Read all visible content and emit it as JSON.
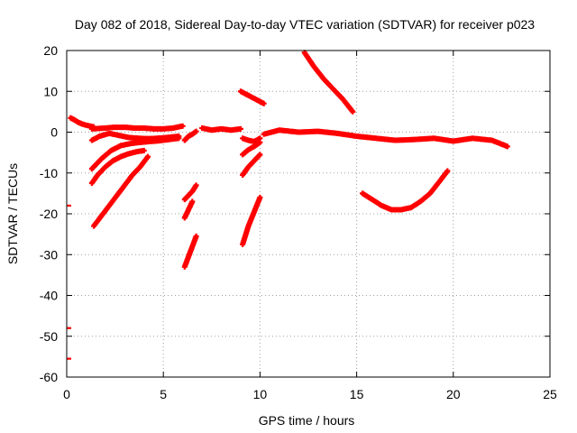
{
  "chart_data": {
    "type": "scatter",
    "title": "Day 082 of 2018, Sidereal Day-to-day VTEC variation (SDTVAR) for receiver p023",
    "xlabel": "GPS time / hours",
    "ylabel": "SDTVAR / TECUs",
    "xlim": [
      0,
      25
    ],
    "ylim": [
      -60,
      20
    ],
    "xticks": [
      0,
      5,
      10,
      15,
      20,
      25
    ],
    "yticks": [
      -60,
      -50,
      -40,
      -30,
      -20,
      -10,
      0,
      10,
      20
    ],
    "xtick_labels": [
      "0",
      "5",
      "10",
      "15",
      "20",
      "25"
    ],
    "ytick_labels": [
      "-60",
      "-50",
      "-40",
      "-30",
      "-20",
      "-10",
      "0",
      "10",
      "20"
    ],
    "grid": true,
    "marker": "+",
    "color": "#ff0000",
    "series": [
      {
        "name": "arc-1",
        "x": [
          0.2,
          0.4,
          0.6,
          0.8,
          1.0,
          1.2,
          1.4
        ],
        "y": [
          3.5,
          3.0,
          2.4,
          2.0,
          1.7,
          1.5,
          1.3
        ]
      },
      {
        "name": "arc-2",
        "x": [
          1.3,
          2.0,
          2.5,
          3.0,
          3.5,
          4.0,
          4.5,
          5.0,
          5.5,
          6.0
        ],
        "y": [
          0.8,
          1.0,
          1.2,
          1.2,
          1.0,
          1.0,
          0.8,
          0.8,
          1.0,
          1.5
        ]
      },
      {
        "name": "arc-3",
        "x": [
          1.3,
          1.7,
          2.2,
          2.7,
          3.2,
          3.7,
          4.2,
          4.7,
          5.2,
          5.8
        ],
        "y": [
          -2.0,
          -1.0,
          -0.3,
          -0.8,
          -1.3,
          -1.5,
          -1.6,
          -1.5,
          -1.3,
          -1.0
        ]
      },
      {
        "name": "arc-4",
        "x": [
          1.3,
          1.8,
          2.3,
          2.8,
          3.3,
          3.8,
          4.3,
          4.8,
          5.3,
          5.8
        ],
        "y": [
          -9.0,
          -6.5,
          -4.5,
          -3.3,
          -2.8,
          -2.5,
          -2.3,
          -2.1,
          -1.8,
          -1.5
        ]
      },
      {
        "name": "arc-5",
        "x": [
          1.3,
          1.6,
          2.0,
          2.4,
          2.8,
          3.2,
          3.6,
          4.0
        ],
        "y": [
          -12.5,
          -10.5,
          -8.5,
          -7.0,
          -6.0,
          -5.3,
          -4.8,
          -4.5
        ]
      },
      {
        "name": "arc-6",
        "x": [
          1.4,
          1.8,
          2.2,
          2.6,
          3.0,
          3.4,
          3.8,
          4.2
        ],
        "y": [
          -23.0,
          -20.5,
          -18.0,
          -15.5,
          -13.0,
          -10.5,
          -8.5,
          -6.0
        ]
      },
      {
        "name": "arc-7",
        "x": [
          6.1,
          6.3,
          6.5,
          6.7
        ],
        "y": [
          -2.0,
          -1.0,
          -0.5,
          0.2
        ]
      },
      {
        "name": "arc-8",
        "x": [
          6.1,
          6.3,
          6.5,
          6.7
        ],
        "y": [
          -16.5,
          -15.5,
          -14.5,
          -13.0
        ]
      },
      {
        "name": "arc-9",
        "x": [
          6.1,
          6.3,
          6.5
        ],
        "y": [
          -21.0,
          -19.0,
          -17.0
        ]
      },
      {
        "name": "arc-10",
        "x": [
          6.1,
          6.3,
          6.5,
          6.7
        ],
        "y": [
          -33.0,
          -30.5,
          -28.0,
          -25.5
        ]
      },
      {
        "name": "arc-11",
        "x": [
          7.0,
          7.5,
          8.0,
          8.5,
          9.0
        ],
        "y": [
          1.0,
          0.5,
          0.8,
          0.5,
          0.8
        ]
      },
      {
        "name": "arc-12",
        "x": [
          9.0,
          9.4,
          9.8,
          10.2
        ],
        "y": [
          10.0,
          9.0,
          8.0,
          7.0
        ]
      },
      {
        "name": "arc-13",
        "x": [
          9.1,
          9.4,
          9.7,
          10.0
        ],
        "y": [
          -1.5,
          -2.0,
          -2.3,
          -1.5
        ]
      },
      {
        "name": "arc-14",
        "x": [
          9.1,
          9.4,
          9.7,
          10.0
        ],
        "y": [
          -5.5,
          -4.3,
          -3.5,
          -2.5
        ]
      },
      {
        "name": "arc-15",
        "x": [
          9.1,
          9.4,
          9.7,
          10.0
        ],
        "y": [
          -10.5,
          -8.5,
          -7.0,
          -5.5
        ]
      },
      {
        "name": "arc-16",
        "x": [
          9.1,
          9.4,
          9.7,
          10.0
        ],
        "y": [
          -27.5,
          -23.0,
          -19.5,
          -16.0
        ]
      },
      {
        "name": "arc-17",
        "x": [
          10.2,
          11.0,
          12.0,
          13.0,
          14.0,
          15.0,
          16.0,
          17.0,
          18.0,
          19.0,
          20.0,
          21.0,
          22.0,
          22.8
        ],
        "y": [
          -0.5,
          0.5,
          0.0,
          0.2,
          -0.3,
          -1.0,
          -1.5,
          -2.0,
          -1.8,
          -1.5,
          -2.2,
          -1.5,
          -2.0,
          -3.5
        ]
      },
      {
        "name": "arc-18",
        "x": [
          12.3,
          12.8,
          13.3,
          13.8,
          14.3,
          14.8
        ],
        "y": [
          19.5,
          16.0,
          13.0,
          10.5,
          8.0,
          5.0
        ]
      },
      {
        "name": "arc-19",
        "x": [
          15.3,
          15.8,
          16.3,
          16.8,
          17.3,
          17.8,
          18.3,
          18.8,
          19.3,
          19.7
        ],
        "y": [
          -15.0,
          -16.5,
          -18.0,
          -19.0,
          -19.0,
          -18.5,
          -17.0,
          -15.0,
          -12.0,
          -9.5
        ]
      },
      {
        "name": "outliers",
        "x": [
          0.0,
          0.0,
          0.0
        ],
        "y": [
          -18.0,
          -48.0,
          -55.5
        ]
      }
    ]
  }
}
